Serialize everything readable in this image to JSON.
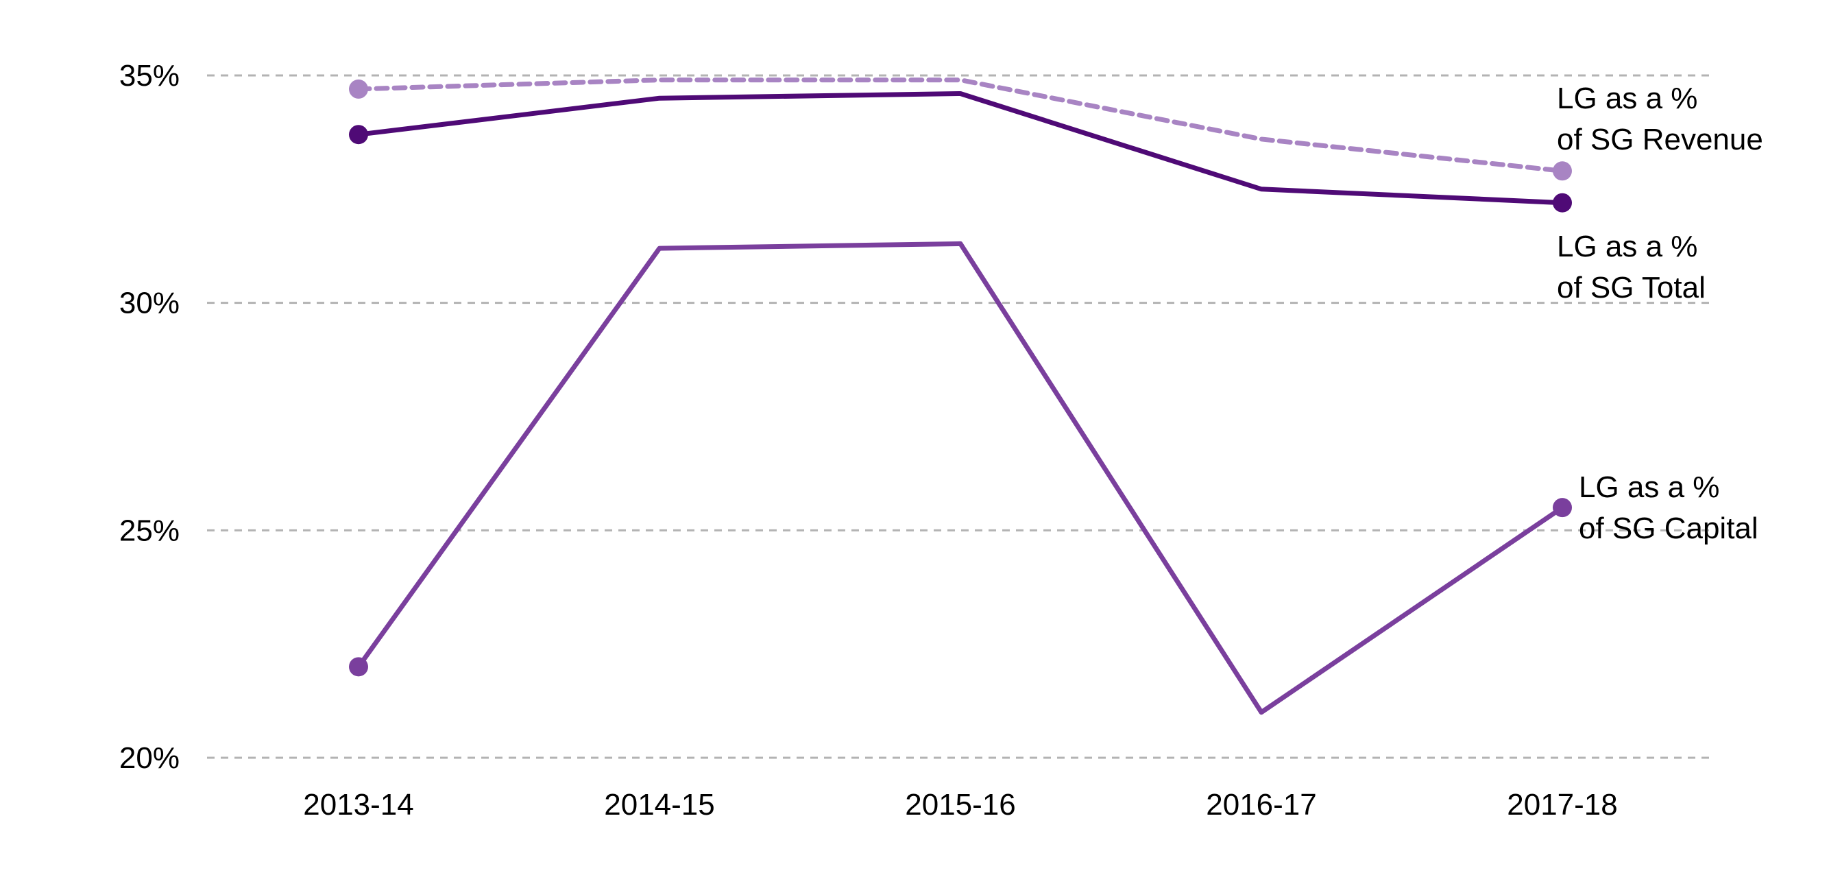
{
  "chart_data": {
    "type": "line",
    "title": "",
    "xlabel": "",
    "ylabel": "",
    "categories": [
      "2013-14",
      "2014-15",
      "2015-16",
      "2016-17",
      "2017-18"
    ],
    "ylim": [
      20,
      35
    ],
    "yticks": [
      {
        "value": 20,
        "label": "20%"
      },
      {
        "value": 25,
        "label": "25%"
      },
      {
        "value": 30,
        "label": "30%"
      },
      {
        "value": 35,
        "label": "35%"
      }
    ],
    "grid": "horizontal dashed",
    "series": [
      {
        "key": "revenue",
        "name_lines": [
          "LG as a %",
          "of SG Revenue"
        ],
        "values": [
          34.7,
          34.9,
          34.9,
          33.6,
          32.9
        ],
        "color": "#a884c3",
        "dashed": true
      },
      {
        "key": "total",
        "name_lines": [
          "LG as a %",
          "of SG Total"
        ],
        "values": [
          33.7,
          34.5,
          34.6,
          32.5,
          32.2
        ],
        "color": "#4f0a76",
        "dashed": false
      },
      {
        "key": "capital",
        "name_lines": [
          "LG as a %",
          "of SG Capital"
        ],
        "values": [
          22.0,
          31.2,
          31.3,
          21.0,
          25.5
        ],
        "color": "#7a3f9d",
        "dashed": false
      }
    ]
  }
}
